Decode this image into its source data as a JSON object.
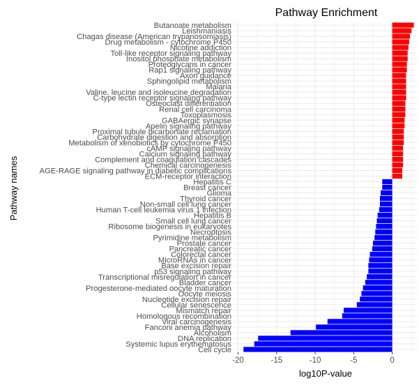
{
  "chart_data": {
    "type": "bar",
    "orientation": "horizontal",
    "title": "Pathway Enrichment",
    "xlabel": "log10P-value",
    "ylabel": "Pathway names",
    "xlim": [
      -20.5,
      3.2
    ],
    "x_ticks": [
      -20,
      -15,
      -10,
      -5,
      0
    ],
    "x_tick_labels": [
      "-20",
      "-15",
      "-10",
      "-5",
      "0"
    ],
    "grid": true,
    "colors": {
      "positive": "#ff0000",
      "negative": "#0000ff",
      "grid": "#ebebeb",
      "axis_text": "#4d4d4d"
    },
    "categories": [
      "Butanoate metabolism",
      "Leishmaniasis",
      "Chagas disease (American trypanosomiasis)",
      "Drug metabolism - cytochrome P450",
      "Nicotine addiction",
      "Toll-like receptor signaling pathway",
      "Inositol phosphate metabolism",
      "Proteoglycans in cancer",
      "Rap1 signaling pathway",
      "Axon guidance",
      "Sphingolipid metabolism",
      "Malaria",
      "Valine, leucine and isoleucine degradation",
      "C-type lectin receptor signaling pathway",
      "Osteoclast differentiation",
      "Renal cell carcinoma",
      "Toxoplasmosis",
      "GABAergic synapse",
      "Apelin signaling pathway",
      "Proximal tubule bicarbonate reclamation",
      "Carbohydrate digestion and absorption",
      "Metabolism of xenobiotics by cytochrome P450",
      "cAMP signaling pathway",
      "Calcium signaling pathway",
      "Complement and coagulation cascades",
      "Chemical carcinogenesis",
      "AGE-RAGE signaling pathway in diabetic complications",
      "ECM-receptor interaction",
      "Hepatitis C",
      "Breast cancer",
      "Glioma",
      "Thyroid cancer",
      "Non-small cell lung cancer",
      "Human T-cell leukemia virus 1 infection",
      "Hepatitis B",
      "Small cell lung cancer",
      "Ribosome biogenesis in eukaryotes",
      "Necroptosis",
      "Pyrimidine metabolism",
      "Prostate cancer",
      "Pancreatic cancer",
      "Colorectal cancer",
      "MicroRNAs in cancer",
      "Base excision repair",
      "p53 signaling pathway",
      "Transcriptional misregulation in cancer",
      "Bladder cancer",
      "Progesterone-mediated oocyte maturation",
      "Oocyte meiosis",
      "Nucleotide excision repair",
      "Cellular senescence",
      "Mismatch repair",
      "Homologous recombination",
      "Viral carcinogenesis",
      "Fanconi anemia pathway",
      "Alcoholism",
      "DNA replication",
      "Systemic lupus erythematosus",
      "Cell cycle"
    ],
    "values": [
      2.8,
      2.5,
      2.3,
      2.2,
      2.1,
      2.0,
      2.0,
      1.9,
      1.9,
      1.8,
      1.8,
      1.8,
      1.8,
      1.8,
      1.7,
      1.7,
      1.7,
      1.6,
      1.6,
      1.5,
      1.5,
      1.5,
      1.4,
      1.4,
      1.4,
      1.4,
      1.3,
      1.3,
      -1.3,
      -1.3,
      -1.5,
      -1.6,
      -1.6,
      -1.7,
      -1.9,
      -2.0,
      -2.1,
      -2.2,
      -2.3,
      -2.5,
      -2.6,
      -2.9,
      -3.0,
      -3.1,
      -3.1,
      -3.3,
      -3.5,
      -3.8,
      -4.0,
      -4.2,
      -4.6,
      -6.3,
      -6.5,
      -8.4,
      -9.9,
      -13.2,
      -17.4,
      -17.9,
      -19.3
    ]
  }
}
